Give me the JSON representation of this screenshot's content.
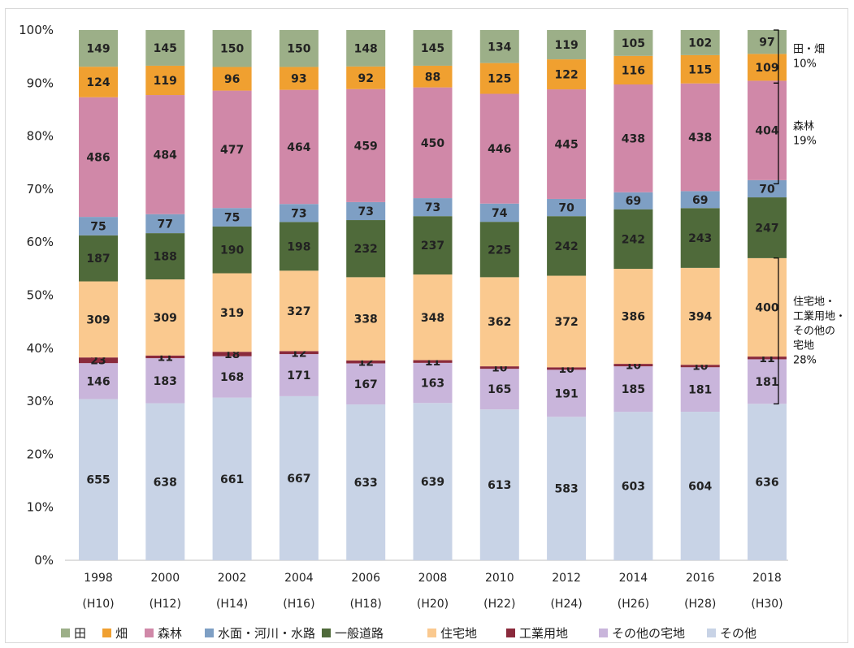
{
  "chart_data": {
    "type": "bar",
    "stacked": "percent",
    "categories": [
      "1998",
      "2000",
      "2002",
      "2004",
      "2006",
      "2008",
      "2010",
      "2012",
      "2014",
      "2016",
      "2018"
    ],
    "category_sublabels": [
      "(H10)",
      "(H12)",
      "(H14)",
      "(H16)",
      "(H18)",
      "(H20)",
      "(H22)",
      "(H24)",
      "(H26)",
      "(H28)",
      "(H30)"
    ],
    "y_ticks": [
      "0%",
      "10%",
      "20%",
      "30%",
      "40%",
      "50%",
      "60%",
      "70%",
      "80%",
      "90%",
      "100%"
    ],
    "ylim": [
      0,
      100
    ],
    "grid": false,
    "legend_position": "bottom",
    "series": [
      {
        "name": "その他",
        "color": "#c8d3e6",
        "values": [
          655,
          638,
          661,
          667,
          633,
          639,
          613,
          583,
          603,
          604,
          636
        ]
      },
      {
        "name": "その他の宅地",
        "color": "#c9b5db",
        "values": [
          146,
          183,
          168,
          171,
          167,
          163,
          165,
          191,
          185,
          181,
          181
        ]
      },
      {
        "name": "工業用地",
        "color": "#8a2a3c",
        "values": [
          23,
          11,
          18,
          12,
          12,
          11,
          10,
          10,
          10,
          10,
          11
        ]
      },
      {
        "name": "住宅地",
        "color": "#fac98f",
        "values": [
          309,
          309,
          319,
          327,
          338,
          348,
          362,
          372,
          386,
          394,
          400
        ]
      },
      {
        "name": "一般道路",
        "color": "#4f6a3a",
        "values": [
          187,
          188,
          190,
          198,
          232,
          237,
          225,
          242,
          242,
          243,
          247
        ]
      },
      {
        "name": "水面・河川・水路",
        "color": "#7e9fc4",
        "values": [
          75,
          77,
          75,
          73,
          73,
          73,
          74,
          70,
          69,
          69,
          70
        ]
      },
      {
        "name": "森林",
        "color": "#d088a8",
        "values": [
          486,
          484,
          477,
          464,
          459,
          450,
          446,
          445,
          438,
          438,
          404
        ]
      },
      {
        "name": "畑",
        "color": "#f0a030",
        "values": [
          124,
          119,
          96,
          93,
          92,
          88,
          125,
          122,
          116,
          115,
          109
        ]
      },
      {
        "name": "田",
        "color": "#9caf88",
        "values": [
          149,
          145,
          150,
          150,
          148,
          145,
          134,
          119,
          105,
          102,
          97
        ]
      }
    ],
    "legend_order": [
      "田",
      "畑",
      "森林",
      "水面・河川・水路",
      "一般道路",
      "住宅地",
      "工業用地",
      "その他の宅地",
      "その他"
    ],
    "annotations": [
      {
        "text_lines": [
          "田・畑",
          "10%"
        ],
        "from_pct": 90,
        "to_pct": 100
      },
      {
        "text_lines": [
          "森林",
          "19%"
        ],
        "from_pct": 71,
        "to_pct": 90
      },
      {
        "text_lines": [
          "住宅地・",
          "工業用地・",
          "その他の",
          "宅地",
          "28%"
        ],
        "from_pct": 29.5,
        "to_pct": 57
      }
    ]
  }
}
